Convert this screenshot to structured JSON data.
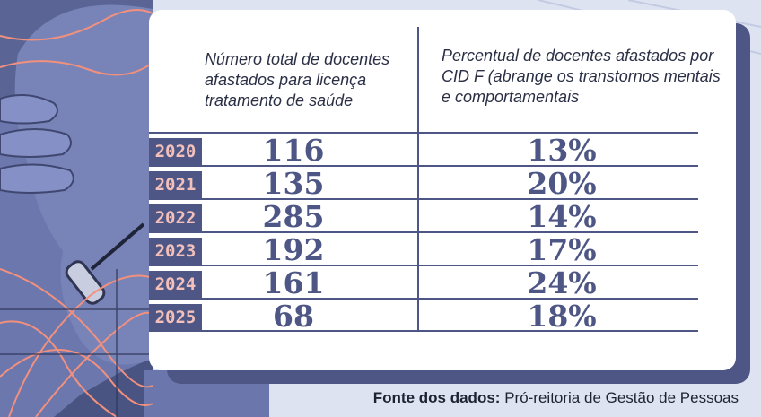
{
  "chart_data": {
    "type": "table",
    "columns": [
      "Número total de docentes afastados para licença tratamento de saúde",
      "Percentual de docentes afastados por CID F (abrange os transtornos mentais e comportamentais"
    ],
    "rows": [
      {
        "year": "2020",
        "total": "116",
        "percent": "13%"
      },
      {
        "year": "2021",
        "total": "135",
        "percent": "20%"
      },
      {
        "year": "2022",
        "total": "285",
        "percent": "14%"
      },
      {
        "year": "2023",
        "total": "192",
        "percent": "17%"
      },
      {
        "year": "2024",
        "total": "161",
        "percent": "24%"
      },
      {
        "year": "2025",
        "total": "68",
        "percent": "18%"
      }
    ]
  },
  "source": {
    "label": "Fonte dos dados:",
    "text": "Pró-reitoria de Gestão de Pessoas"
  },
  "colors": {
    "accent": "#4d5684",
    "year_text": "#f3c0bb",
    "background_illustration": "#6470a6",
    "line_art": "#f2907e"
  }
}
